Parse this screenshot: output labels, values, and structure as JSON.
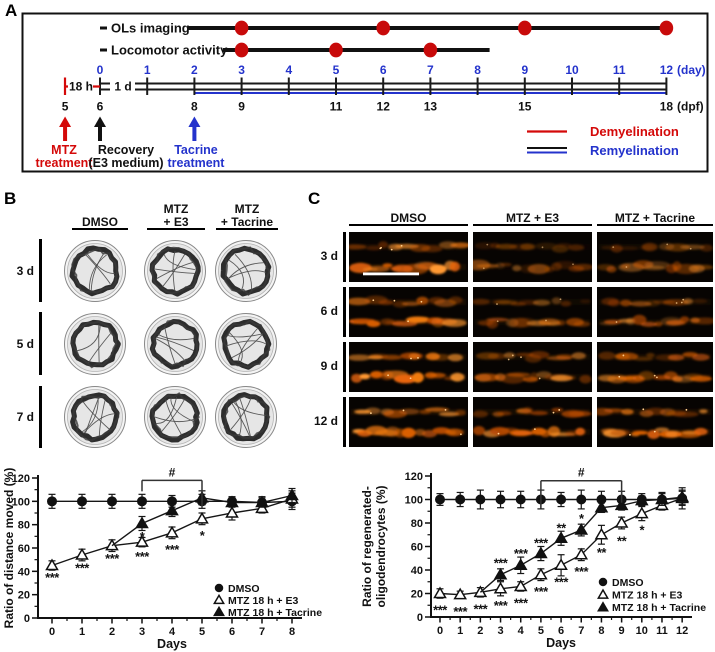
{
  "colors": {
    "red": "#d40909",
    "dot_red": "#c80a0a",
    "blue": "#2433cc",
    "black": "#111111",
    "orange": "#e06a10",
    "track_ink": "#2d2d2d"
  },
  "panelA": {
    "label": "A",
    "timeline_rows": [
      {
        "label": "OLs imaging",
        "dot_days": [
          3,
          6,
          9,
          12
        ],
        "line_end_day": 12
      },
      {
        "label": "Locomotor activity",
        "dot_days": [
          3,
          5,
          7
        ],
        "line_end_day": 8
      }
    ],
    "day_numbers": [
      "0",
      "1",
      "2",
      "3",
      "4",
      "5",
      "6",
      "7",
      "8",
      "9",
      "10",
      "11",
      "12"
    ],
    "day_unit": "(day)",
    "dpf_ticks": [
      {
        "d": -0.74,
        "t": "5"
      },
      {
        "d": 0,
        "t": "6"
      },
      {
        "d": 2,
        "t": "8"
      },
      {
        "d": 3,
        "t": "9"
      },
      {
        "d": 5,
        "t": "11"
      },
      {
        "d": 6,
        "t": "12"
      },
      {
        "d": 7,
        "t": "13"
      },
      {
        "d": 9,
        "t": "15"
      },
      {
        "d": 12,
        "t": "18"
      }
    ],
    "dpf_unit": "(dpf)",
    "seg_18h": "18 h",
    "seg_1d": "1 d",
    "arrows": [
      {
        "d": -0.74,
        "color": "red",
        "lines": [
          "MTZ",
          "treatment"
        ]
      },
      {
        "d": 0,
        "color": "black",
        "lines": [
          "Recovery",
          "(E3 medium)"
        ]
      },
      {
        "d": 2,
        "color": "blue",
        "lines": [
          "Tacrine",
          "treatment"
        ]
      }
    ],
    "legend": [
      {
        "style": "demyelination",
        "label": "Demyelination"
      },
      {
        "style": "remyelination",
        "label": "Remyelination"
      }
    ]
  },
  "panelB": {
    "label": "B",
    "col_headers": [
      [
        "DMSO"
      ],
      [
        "MTZ",
        "+ E3"
      ],
      [
        "MTZ",
        "+ Tacrine"
      ]
    ],
    "row_labels": [
      "3 d",
      "5 d",
      "7 d"
    ]
  },
  "panelC": {
    "label": "C",
    "col_headers": [
      "DMSO",
      "MTZ + E3",
      "MTZ + Tacrine"
    ],
    "row_labels": [
      "3 d",
      "6 d",
      "9 d",
      "12 d"
    ],
    "intensity": [
      [
        0.85,
        0.4,
        0.45
      ],
      [
        0.9,
        0.5,
        0.6
      ],
      [
        0.95,
        0.65,
        0.8
      ],
      [
        1.0,
        0.85,
        0.9
      ]
    ]
  },
  "chart_data": [
    {
      "type": "line",
      "title": "",
      "xlabel": "Days",
      "ylabel_lines": [
        "Ratio of distance moved (%)"
      ],
      "xlim": [
        0,
        8
      ],
      "ylim": [
        0,
        120
      ],
      "xticks": [
        0,
        1,
        2,
        3,
        4,
        5,
        6,
        7,
        8
      ],
      "yticks": [
        0,
        20,
        40,
        60,
        80,
        100,
        120
      ],
      "grid": false,
      "legend_position": "bottom-right",
      "series": [
        {
          "name": "DMSO",
          "marker": "circle-filled",
          "x": [
            0,
            1,
            2,
            3,
            4,
            5,
            6,
            7,
            8
          ],
          "values": [
            100,
            100,
            100,
            100,
            100,
            100,
            100,
            99,
            100
          ],
          "errors": [
            6,
            6,
            6,
            6,
            5,
            6,
            4,
            5,
            7
          ]
        },
        {
          "name": "MTZ 18 h + E3",
          "marker": "triangle-open",
          "x": [
            0,
            1,
            2,
            3,
            4,
            5,
            6,
            7,
            8
          ],
          "values": [
            45,
            54,
            62,
            65,
            73,
            85,
            90,
            94,
            102
          ],
          "errors": [
            4,
            5,
            5,
            4,
            5,
            5,
            6,
            4,
            7
          ]
        },
        {
          "name": "MTZ 18 h + Tacrine",
          "marker": "triangle-filled",
          "skip_first_marker": true,
          "x": [
            2,
            3,
            4,
            5,
            6,
            7,
            8
          ],
          "values": [
            62,
            81,
            92,
            103,
            99,
            99,
            105
          ],
          "errors": [
            0,
            6,
            5,
            6,
            4,
            4,
            6
          ]
        }
      ],
      "annotations": [
        {
          "x": 0,
          "y": 37,
          "t": "***"
        },
        {
          "x": 1,
          "y": 45,
          "t": "***"
        },
        {
          "x": 2,
          "y": 53,
          "t": "***"
        },
        {
          "x": 3,
          "y": 55,
          "t": "***"
        },
        {
          "x": 3,
          "y": 72,
          "t": "*"
        },
        {
          "x": 4,
          "y": 61,
          "t": "***"
        },
        {
          "x": 5,
          "y": 73,
          "t": "*"
        }
      ],
      "bracket": {
        "x1": 3,
        "x2": 5,
        "y": 118,
        "label": "#",
        "t1": 11,
        "t2": 26
      }
    },
    {
      "type": "line",
      "title": "",
      "xlabel": "Days",
      "ylabel_lines": [
        "Ratio of regenerated-",
        "oligodendrocytes (%)"
      ],
      "xlim": [
        0,
        12
      ],
      "ylim": [
        0,
        120
      ],
      "xticks": [
        0,
        1,
        2,
        3,
        4,
        5,
        6,
        7,
        8,
        9,
        10,
        11,
        12
      ],
      "yticks": [
        0,
        20,
        40,
        60,
        80,
        100,
        120
      ],
      "grid": false,
      "legend_position": "bottom-right",
      "series": [
        {
          "name": "DMSO",
          "marker": "circle-filled",
          "x": [
            0,
            1,
            2,
            3,
            4,
            5,
            6,
            7,
            8,
            9,
            10,
            11,
            12
          ],
          "values": [
            100,
            100,
            100,
            100,
            100,
            100,
            100,
            100,
            100,
            100,
            100,
            100,
            101
          ],
          "errors": [
            5,
            6,
            8,
            7,
            7,
            8,
            6,
            8,
            7,
            7,
            5,
            6,
            9
          ]
        },
        {
          "name": "MTZ 18 h + E3",
          "marker": "triangle-open",
          "x": [
            0,
            1,
            2,
            3,
            4,
            5,
            6,
            7,
            8,
            9,
            10,
            11,
            12
          ],
          "values": [
            20,
            19,
            21,
            24,
            26,
            36,
            44,
            53,
            70,
            80,
            88,
            95,
            101
          ],
          "errors": [
            4,
            3,
            4,
            6,
            4,
            5,
            9,
            5,
            8,
            5,
            6,
            4,
            6
          ]
        },
        {
          "name": "MTZ 18 h + Tacrine",
          "marker": "triangle-filled",
          "skip_first_marker": true,
          "x": [
            2,
            3,
            4,
            5,
            6,
            7,
            8,
            9,
            10,
            11,
            12
          ],
          "values": [
            21,
            36,
            44,
            54,
            67,
            74,
            93,
            95,
            99,
            100,
            102
          ],
          "errors": [
            0,
            5,
            7,
            6,
            6,
            5,
            4,
            4,
            4,
            5,
            6
          ]
        }
      ],
      "annotations": [
        {
          "x": 0,
          "y": 8,
          "t": "***"
        },
        {
          "x": 1,
          "y": 7,
          "t": "***"
        },
        {
          "x": 2,
          "y": 9,
          "t": "***"
        },
        {
          "x": 3,
          "y": 12,
          "t": "***"
        },
        {
          "x": 4,
          "y": 14,
          "t": "***"
        },
        {
          "x": 5,
          "y": 24,
          "t": "***"
        },
        {
          "x": 6,
          "y": 32,
          "t": "***"
        },
        {
          "x": 7,
          "y": 41,
          "t": "***"
        },
        {
          "x": 8,
          "y": 57,
          "t": "**"
        },
        {
          "x": 9,
          "y": 67,
          "t": "**"
        },
        {
          "x": 10,
          "y": 76,
          "t": "*"
        },
        {
          "x": 3,
          "y": 48,
          "t": "***"
        },
        {
          "x": 4,
          "y": 56,
          "t": "***"
        },
        {
          "x": 5,
          "y": 65,
          "t": "***"
        },
        {
          "x": 6,
          "y": 78,
          "t": "**"
        },
        {
          "x": 7,
          "y": 86,
          "t": "*"
        }
      ],
      "bracket": {
        "x1": 5,
        "x2": 9,
        "y": 116,
        "label": "#",
        "t1": 27,
        "t2": 22
      }
    }
  ]
}
